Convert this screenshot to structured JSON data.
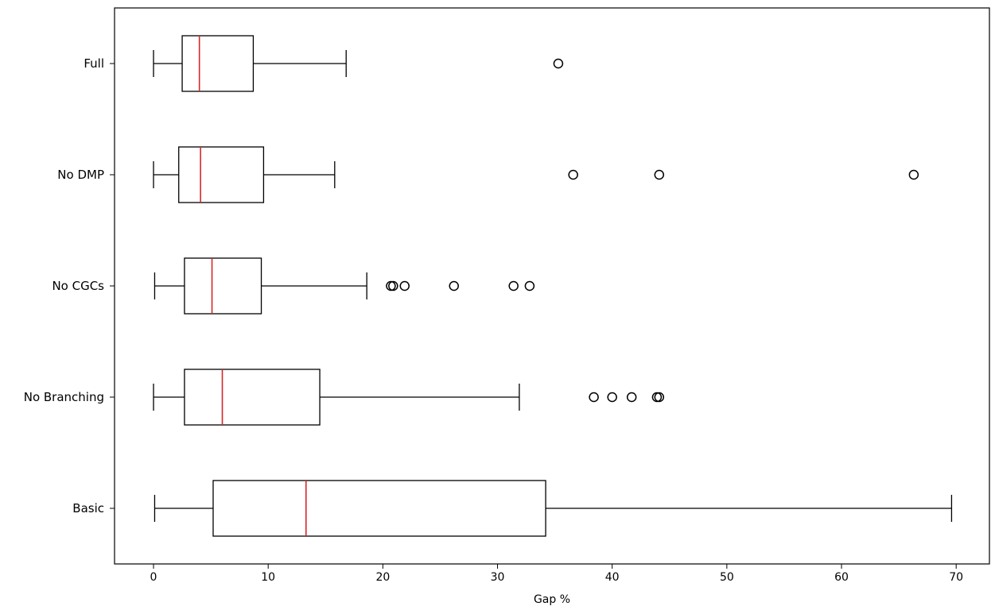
{
  "chart_data": {
    "type": "box",
    "orientation": "horizontal",
    "title": "",
    "xlabel": "Gap %",
    "ylabel": "",
    "xlim": [
      -3.4,
      72.9
    ],
    "xticks": [
      0,
      10,
      20,
      30,
      40,
      50,
      60,
      70
    ],
    "xtick_labels": [
      "0",
      "10",
      "20",
      "30",
      "40",
      "50",
      "60",
      "70"
    ],
    "median_color": "#d62728",
    "box_color": "#000000",
    "categories": [
      "Full",
      "No DMP",
      "No CGCs",
      "No Branching",
      "Basic"
    ],
    "series": [
      {
        "name": "Full",
        "whisker_low": 0.0,
        "q1": 2.5,
        "median": 4.0,
        "q3": 8.7,
        "whisker_high": 16.8,
        "outliers": [
          35.3
        ]
      },
      {
        "name": "No DMP",
        "whisker_low": 0.0,
        "q1": 2.2,
        "median": 4.1,
        "q3": 9.6,
        "whisker_high": 15.8,
        "outliers": [
          36.6,
          44.1,
          66.3
        ]
      },
      {
        "name": "No CGCs",
        "whisker_low": 0.1,
        "q1": 2.7,
        "median": 5.1,
        "q3": 9.4,
        "whisker_high": 18.6,
        "outliers": [
          20.7,
          20.9,
          21.9,
          26.2,
          31.4,
          32.8
        ]
      },
      {
        "name": "No Branching",
        "whisker_low": 0.0,
        "q1": 2.7,
        "median": 6.0,
        "q3": 14.5,
        "whisker_high": 31.9,
        "outliers": [
          38.4,
          40.0,
          41.7,
          43.9,
          44.1
        ]
      },
      {
        "name": "Basic",
        "whisker_low": 0.1,
        "q1": 5.2,
        "median": 13.3,
        "q3": 34.2,
        "whisker_high": 69.6,
        "outliers": []
      }
    ]
  }
}
